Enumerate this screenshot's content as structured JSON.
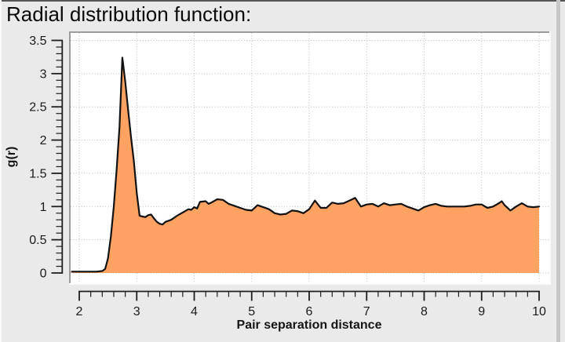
{
  "title": "Radial distribution function:",
  "chart_data": {
    "type": "area",
    "title": "Radial distribution function:",
    "xlabel": "Pair separation distance",
    "ylabel": "g(r)",
    "xlim": [
      2,
      10
    ],
    "ylim": [
      0,
      3.5
    ],
    "x_major_ticks": [
      2,
      3,
      4,
      5,
      6,
      7,
      8,
      9,
      10
    ],
    "x_tick_labels": [
      "2",
      "3",
      "4",
      "5",
      "6",
      "7",
      "8",
      "9",
      "10"
    ],
    "x_minor_step": 0.2,
    "y_major_ticks": [
      0,
      0.5,
      1,
      1.5,
      2,
      2.5,
      3,
      3.5
    ],
    "y_tick_labels": [
      "0",
      "0.5",
      "1",
      "1.5",
      "2",
      "2.5",
      "3",
      "3.5"
    ],
    "y_minor_step": 0.1,
    "grid": "dotted gridlines at major ticks",
    "legend": "none",
    "series": [
      {
        "name": "g(r)",
        "points": [
          [
            1.87,
            0.02
          ],
          [
            2.0,
            0.02
          ],
          [
            2.1,
            0.02
          ],
          [
            2.2,
            0.02
          ],
          [
            2.3,
            0.02
          ],
          [
            2.4,
            0.03
          ],
          [
            2.45,
            0.06
          ],
          [
            2.5,
            0.22
          ],
          [
            2.55,
            0.55
          ],
          [
            2.6,
            1.0
          ],
          [
            2.65,
            1.55
          ],
          [
            2.7,
            2.2
          ],
          [
            2.75,
            3.24
          ],
          [
            2.8,
            2.88
          ],
          [
            2.85,
            2.45
          ],
          [
            2.9,
            2.05
          ],
          [
            2.95,
            1.68
          ],
          [
            3.0,
            1.2
          ],
          [
            3.05,
            0.86
          ],
          [
            3.1,
            0.85
          ],
          [
            3.15,
            0.84
          ],
          [
            3.2,
            0.87
          ],
          [
            3.25,
            0.88
          ],
          [
            3.3,
            0.82
          ],
          [
            3.35,
            0.77
          ],
          [
            3.4,
            0.74
          ],
          [
            3.45,
            0.73
          ],
          [
            3.5,
            0.77
          ],
          [
            3.6,
            0.8
          ],
          [
            3.7,
            0.86
          ],
          [
            3.8,
            0.91
          ],
          [
            3.9,
            0.96
          ],
          [
            3.95,
            0.95
          ],
          [
            4.0,
            0.99
          ],
          [
            4.05,
            0.97
          ],
          [
            4.1,
            1.07
          ],
          [
            4.2,
            1.08
          ],
          [
            4.25,
            1.04
          ],
          [
            4.3,
            1.06
          ],
          [
            4.4,
            1.11
          ],
          [
            4.5,
            1.1
          ],
          [
            4.6,
            1.04
          ],
          [
            4.7,
            1.01
          ],
          [
            4.8,
            0.98
          ],
          [
            4.9,
            0.95
          ],
          [
            5.0,
            0.94
          ],
          [
            5.1,
            1.02
          ],
          [
            5.2,
            0.99
          ],
          [
            5.3,
            0.96
          ],
          [
            5.4,
            0.9
          ],
          [
            5.5,
            0.88
          ],
          [
            5.6,
            0.89
          ],
          [
            5.7,
            0.94
          ],
          [
            5.8,
            0.93
          ],
          [
            5.9,
            0.9
          ],
          [
            6.0,
            0.96
          ],
          [
            6.1,
            1.09
          ],
          [
            6.2,
            0.98
          ],
          [
            6.3,
            0.98
          ],
          [
            6.4,
            1.06
          ],
          [
            6.5,
            1.04
          ],
          [
            6.6,
            1.05
          ],
          [
            6.7,
            1.09
          ],
          [
            6.8,
            1.13
          ],
          [
            6.9,
            1.0
          ],
          [
            7.0,
            1.03
          ],
          [
            7.1,
            1.04
          ],
          [
            7.2,
            1.0
          ],
          [
            7.3,
            1.05
          ],
          [
            7.4,
            1.02
          ],
          [
            7.5,
            1.03
          ],
          [
            7.6,
            1.04
          ],
          [
            7.7,
            1.0
          ],
          [
            7.8,
            0.97
          ],
          [
            7.9,
            0.94
          ],
          [
            8.0,
            0.99
          ],
          [
            8.1,
            1.02
          ],
          [
            8.2,
            1.04
          ],
          [
            8.3,
            1.01
          ],
          [
            8.4,
            1.0
          ],
          [
            8.5,
            1.0
          ],
          [
            8.6,
            1.0
          ],
          [
            8.7,
            1.0
          ],
          [
            8.8,
            1.01
          ],
          [
            8.9,
            1.03
          ],
          [
            9.0,
            1.03
          ],
          [
            9.1,
            0.98
          ],
          [
            9.2,
            1.0
          ],
          [
            9.3,
            1.05
          ],
          [
            9.35,
            1.08
          ],
          [
            9.4,
            1.02
          ],
          [
            9.5,
            0.94
          ],
          [
            9.6,
            1.0
          ],
          [
            9.7,
            1.05
          ],
          [
            9.8,
            1.0
          ],
          [
            9.9,
            0.99
          ],
          [
            10.0,
            1.0
          ]
        ]
      }
    ],
    "colors": {
      "fill": "#ffa262",
      "line": "#121212",
      "grid": "#bdbdbd",
      "axis": "#1f1f1f",
      "background": "#eaeaea",
      "plot_background": "#ffffff"
    }
  }
}
